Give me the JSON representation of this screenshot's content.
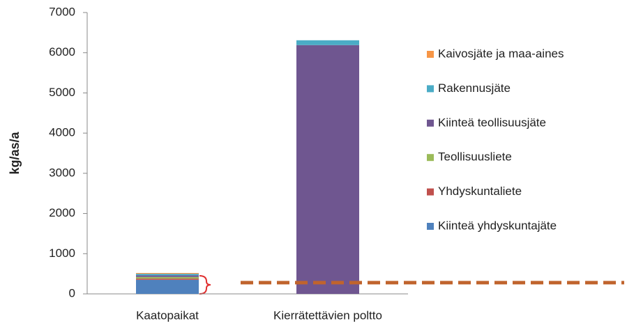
{
  "chart_data": {
    "type": "stacked_bar",
    "y_label": "kg/as/a",
    "categories": [
      "Kaatopaikat",
      "Kierrätettävien poltto"
    ],
    "series": [
      {
        "name": "Kiinteä yhdyskuntajäte",
        "color": "#4f81bd",
        "values": [
          350,
          0
        ]
      },
      {
        "name": "Yhdyskuntaliete",
        "color": "#c0504d",
        "values": [
          30,
          0
        ]
      },
      {
        "name": "Teollisuusliete",
        "color": "#9bbb59",
        "values": [
          40,
          0
        ]
      },
      {
        "name": "Kiinteä teollisuusjäte",
        "color": "#6f5690",
        "values": [
          40,
          6190
        ]
      },
      {
        "name": "Rakennusjäte",
        "color": "#4bacc6",
        "values": [
          40,
          120
        ]
      },
      {
        "name": "Kaivosjäte ja maa-aines",
        "color": "#f79646",
        "values": [
          20,
          0
        ]
      }
    ],
    "ylim": [
      0,
      7000
    ],
    "yticks": [
      0,
      1000,
      2000,
      3000,
      4000,
      5000,
      6000,
      7000
    ],
    "reference_line": {
      "value": 280,
      "color": "#c0642d"
    }
  }
}
